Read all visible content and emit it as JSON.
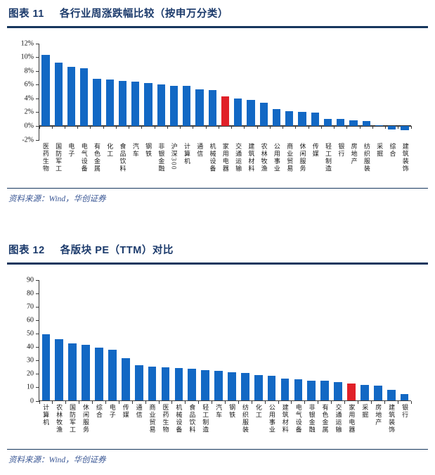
{
  "figures": [
    {
      "label": "图表  11",
      "title": "各行业周涨跌幅比较（按申万分类）",
      "source": "资料来源：Wind，华创证券"
    },
    {
      "label": "图表  12",
      "title": "各版块 PE（TTM）对比",
      "source": "资料来源：Wind，华创证券"
    }
  ],
  "colors": {
    "bar_blue": "#1268C4",
    "bar_red": "#E02028",
    "heading_navy": "#1B3A6B",
    "rule_navy": "#17375E",
    "source_blue": "#3A5795"
  },
  "chart_data": [
    {
      "type": "bar",
      "title": "各行业周涨跌幅比较（按申万分类）",
      "xlabel": "",
      "ylabel": "",
      "categories": [
        "医药生物",
        "国防军工",
        "电子",
        "电气设备",
        "有色金属",
        "化工",
        "食品饮料",
        "汽车",
        "钢铁",
        "非银金融",
        "沪深300",
        "计算机",
        "通信",
        "机械设备",
        "家用电器",
        "交通运输",
        "建筑材料",
        "农林牧渔",
        "公用事业",
        "商业贸易",
        "休闲服务",
        "传媒",
        "轻工制造",
        "银行",
        "房地产",
        "纺织服装",
        "采掘",
        "综合",
        "建筑装饰"
      ],
      "values": [
        10.3,
        9.2,
        8.6,
        8.4,
        6.8,
        6.7,
        6.5,
        6.4,
        6.2,
        6.0,
        5.8,
        5.8,
        5.3,
        5.2,
        4.3,
        4.0,
        3.8,
        3.4,
        2.4,
        2.1,
        2.0,
        1.9,
        1.0,
        1.0,
        0.8,
        0.7,
        0.05,
        -0.5,
        -0.65
      ],
      "highlight_category": "家用电器",
      "highlight_color": "#E02028",
      "bar_color": "#1268C4",
      "ylim": [
        -2,
        12
      ],
      "yticks": [
        12,
        10,
        8,
        6,
        4,
        2,
        0,
        -2
      ],
      "ytick_suffix": "%",
      "grid": "off",
      "legend": "none"
    },
    {
      "type": "bar",
      "title": "各版块 PE（TTM）对比",
      "xlabel": "",
      "ylabel": "",
      "categories": [
        "计算机",
        "农林牧渔",
        "国防军工",
        "休闲服务",
        "综合",
        "电子",
        "传媒",
        "通信",
        "商业贸易",
        "医药生物",
        "机械设备",
        "食品饮料",
        "轻工制造",
        "汽车",
        "钢铁",
        "纺织服装",
        "化工",
        "公用事业",
        "建筑材料",
        "电气设备",
        "非银金融",
        "有色金属",
        "交通运输",
        "家用电器",
        "采掘",
        "房地产",
        "建筑装饰",
        "银行"
      ],
      "values": [
        49.3,
        45.8,
        42.4,
        41.5,
        39.3,
        38.0,
        31.9,
        26.2,
        25.3,
        25.0,
        24.5,
        24.0,
        23.0,
        22.3,
        21.0,
        20.5,
        19.0,
        18.5,
        16.5,
        15.8,
        15.0,
        14.8,
        14.0,
        12.8,
        11.6,
        11.5,
        8.3,
        5.0
      ],
      "highlight_category": "家用电器",
      "highlight_color": "#E02028",
      "bar_color": "#1268C4",
      "ylim": [
        0,
        90
      ],
      "yticks": [
        90,
        80,
        70,
        60,
        50,
        40,
        30,
        20,
        10,
        0
      ],
      "ytick_suffix": "",
      "grid": "off",
      "legend": "none"
    }
  ]
}
